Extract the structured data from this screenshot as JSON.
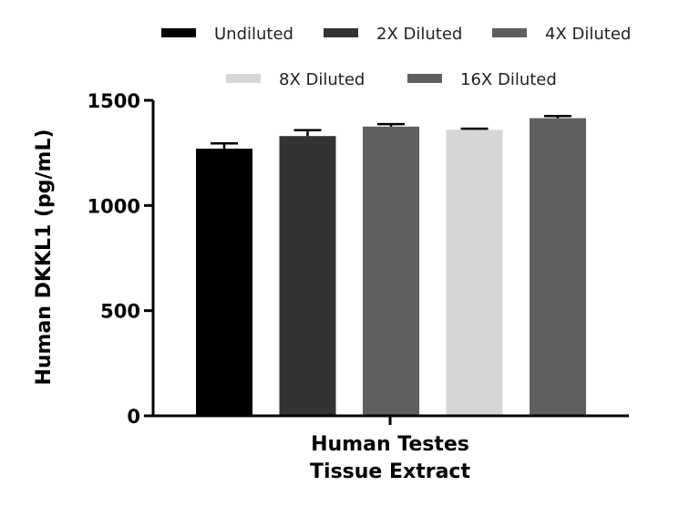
{
  "chart_data": {
    "type": "bar",
    "title": "",
    "ylabel": "Human DKKL1 (pg/mL)",
    "xlabel_lines": [
      "Human Testes",
      "Tissue Extract"
    ],
    "ylim": [
      0,
      1500
    ],
    "yticks": [
      0,
      500,
      1000,
      1500
    ],
    "grid": false,
    "legend_position": "top",
    "series": [
      {
        "name": "Undiluted",
        "value": 1270,
        "error": 25,
        "color": "#000000"
      },
      {
        "name": "2X Diluted",
        "value": 1330,
        "error": 28,
        "color": "#333333"
      },
      {
        "name": "4X Diluted",
        "value": 1375,
        "error": 12,
        "color": "#5f5f5f"
      },
      {
        "name": "8X Diluted",
        "value": 1360,
        "error": 5,
        "color": "#d6d6d6"
      },
      {
        "name": "16X Diluted",
        "value": 1415,
        "error": 10,
        "color": "#5f5f5f"
      }
    ]
  }
}
